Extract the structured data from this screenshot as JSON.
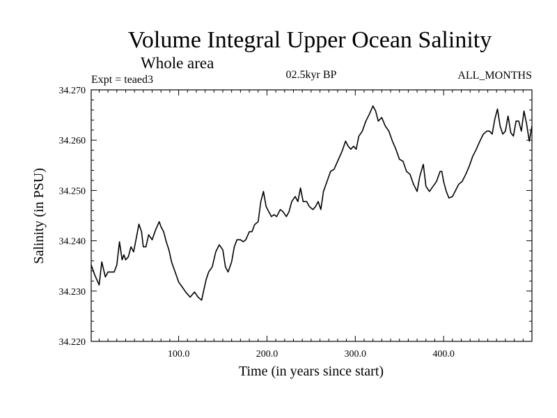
{
  "chart_data": {
    "type": "line",
    "title": "Volume Integral Upper Ocean Salinity",
    "subtitle": "Whole area",
    "left_label": "Expt = teaed3",
    "center_label": "02.5kyr BP",
    "right_label": "ALL_MONTHS",
    "xlabel": "Time (in years since start)",
    "ylabel": "Salinity (in PSU)",
    "xlim": [
      1,
      500
    ],
    "ylim": [
      34.22,
      34.27
    ],
    "x_ticks": [
      100,
      200,
      300,
      400
    ],
    "x_tick_labels": [
      "100.0",
      "200.0",
      "300.0",
      "400.0"
    ],
    "y_ticks": [
      34.22,
      34.23,
      34.24,
      34.25,
      34.26,
      34.27
    ],
    "y_tick_labels": [
      "34.220",
      "34.230",
      "34.240",
      "34.250",
      "34.260",
      "34.270"
    ],
    "grid": false,
    "series": [
      {
        "name": "Salinity",
        "x": [
          1,
          5,
          10,
          13,
          17,
          20,
          23,
          27,
          30,
          33,
          36,
          38,
          40,
          43,
          46,
          49,
          52,
          55,
          58,
          60,
          63,
          66,
          70,
          74,
          78,
          80,
          83,
          86,
          89,
          92,
          96,
          100,
          104,
          108,
          113,
          118,
          122,
          126,
          128,
          131,
          134,
          138,
          142,
          146,
          150,
          153,
          156,
          160,
          163,
          166,
          170,
          173,
          176,
          180,
          183,
          186,
          190,
          193,
          196,
          199,
          202,
          205,
          208,
          211,
          215,
          218,
          222,
          225,
          228,
          232,
          235,
          238,
          241,
          245,
          248,
          252,
          255,
          258,
          261,
          264,
          268,
          272,
          276,
          280,
          285,
          289,
          292,
          295,
          298,
          301,
          304,
          308,
          312,
          316,
          320,
          323,
          326,
          330,
          334,
          338,
          342,
          346,
          350,
          354,
          358,
          362,
          366,
          370,
          373,
          377,
          380,
          384,
          388,
          392,
          396,
          398,
          400,
          403,
          406,
          410,
          413,
          417,
          421,
          425,
          429,
          433,
          437,
          441,
          445,
          449,
          452,
          455,
          458,
          461,
          464,
          467,
          470,
          473,
          476,
          479,
          482,
          485,
          488,
          491,
          494,
          497,
          500
        ],
        "values": [
          34.2352,
          34.2332,
          34.2312,
          34.2358,
          34.2328,
          34.2338,
          34.2338,
          34.2338,
          34.2352,
          34.2398,
          34.2362,
          34.2372,
          34.2362,
          34.2368,
          34.2388,
          34.2378,
          34.2405,
          34.2433,
          34.2418,
          34.2388,
          34.2388,
          34.2412,
          34.2402,
          34.2422,
          34.2438,
          34.2428,
          34.2418,
          34.2398,
          34.2382,
          34.2358,
          34.2338,
          34.2318,
          34.2308,
          34.2298,
          34.2288,
          34.2298,
          34.2288,
          34.2282,
          34.2298,
          34.2322,
          34.2338,
          34.2348,
          34.2378,
          34.2392,
          34.2382,
          34.2348,
          34.2338,
          34.2358,
          34.2388,
          34.2402,
          34.2402,
          34.2398,
          34.2402,
          34.2418,
          34.2418,
          34.2432,
          34.2438,
          34.2478,
          34.2498,
          34.2468,
          34.2458,
          34.2448,
          34.2452,
          34.2448,
          34.2462,
          34.2458,
          34.2448,
          34.2458,
          34.2478,
          34.2488,
          34.2478,
          34.2505,
          34.2478,
          34.2478,
          34.2468,
          34.2462,
          34.2468,
          34.2478,
          34.2462,
          34.2498,
          34.2518,
          34.2538,
          34.2542,
          34.2558,
          34.2578,
          34.2598,
          34.2588,
          34.2582,
          34.2588,
          34.2582,
          34.2608,
          34.2618,
          34.2638,
          34.2652,
          34.2668,
          34.2658,
          34.2638,
          34.2645,
          34.2628,
          34.2618,
          34.2598,
          34.2582,
          34.2562,
          34.2558,
          34.2538,
          34.2532,
          34.2512,
          34.2498,
          34.2528,
          34.2552,
          34.2508,
          34.2498,
          34.2508,
          34.2518,
          34.2538,
          34.2538,
          34.2518,
          34.2498,
          34.2485,
          34.2488,
          34.2498,
          34.2512,
          34.2518,
          34.2532,
          34.2548,
          34.2568,
          34.2582,
          34.2598,
          34.2612,
          34.2618,
          34.2618,
          34.2612,
          34.2642,
          34.2662,
          34.2628,
          34.2612,
          34.2618,
          34.2648,
          34.2615,
          34.2608,
          34.2638,
          34.2638,
          34.2618,
          34.2658,
          34.2632,
          34.2598,
          34.2628
        ]
      }
    ]
  }
}
